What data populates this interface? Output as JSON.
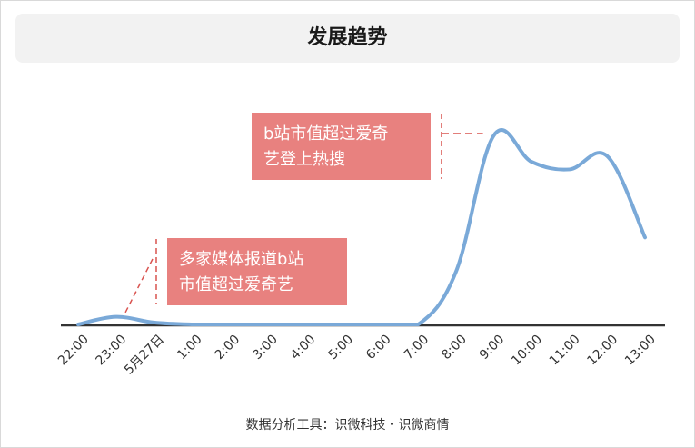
{
  "title": "发展趋势",
  "footer": "数据分析工具：识微科技・识微商情",
  "colors": {
    "line": "#7aa9d8",
    "annotation_fill": "#e8817f",
    "annotation_text": "#ffffff",
    "leader": "#d9534f",
    "axis": "#333333",
    "title_bg": "#f2f2f2"
  },
  "chart_data": {
    "type": "line",
    "title": "发展趋势",
    "xlabel": "",
    "ylabel": "",
    "categories": [
      "22:00",
      "23:00",
      "5月27日",
      "1:00",
      "2:00",
      "3:00",
      "4:00",
      "5:00",
      "6:00",
      "7:00",
      "8:00",
      "9:00",
      "10:00",
      "11:00",
      "12:00",
      "13:00"
    ],
    "values": [
      0,
      4,
      1,
      0,
      0,
      0,
      0,
      0,
      0,
      0,
      28,
      100,
      86,
      82,
      89,
      46
    ],
    "ylim": [
      0,
      100
    ],
    "grid": false,
    "legend": "none",
    "annotations": [
      {
        "lines": [
          "多家媒体报道b站",
          "市值超过爱奇艺"
        ],
        "category": "23:00"
      },
      {
        "lines": [
          "b站市值超过爱奇",
          "艺登上热搜"
        ],
        "category": "9:00"
      }
    ]
  }
}
